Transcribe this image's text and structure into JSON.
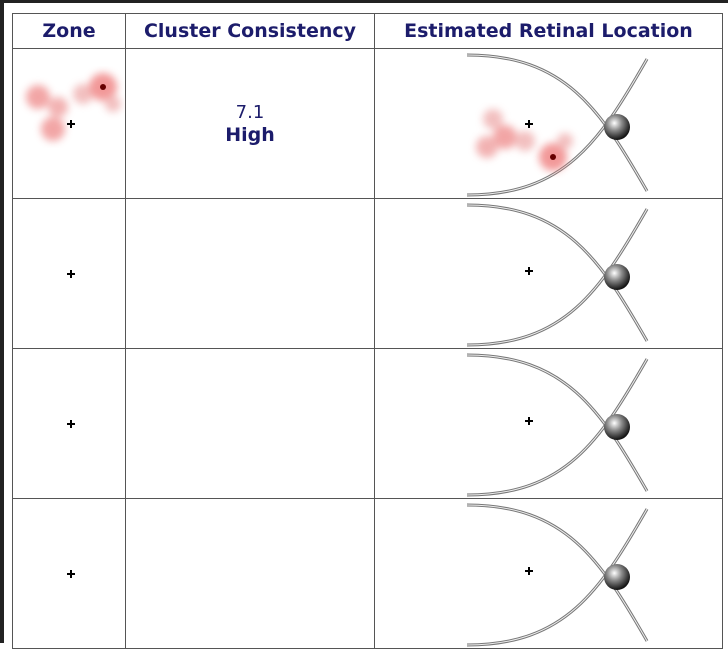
{
  "table": {
    "header": [
      "Zone",
      "Cluster Consistency",
      "Estimated Retinal Location"
    ],
    "rows": [
      {
        "score": 7.1,
        "level": "High"
      }
    ]
  }
}
